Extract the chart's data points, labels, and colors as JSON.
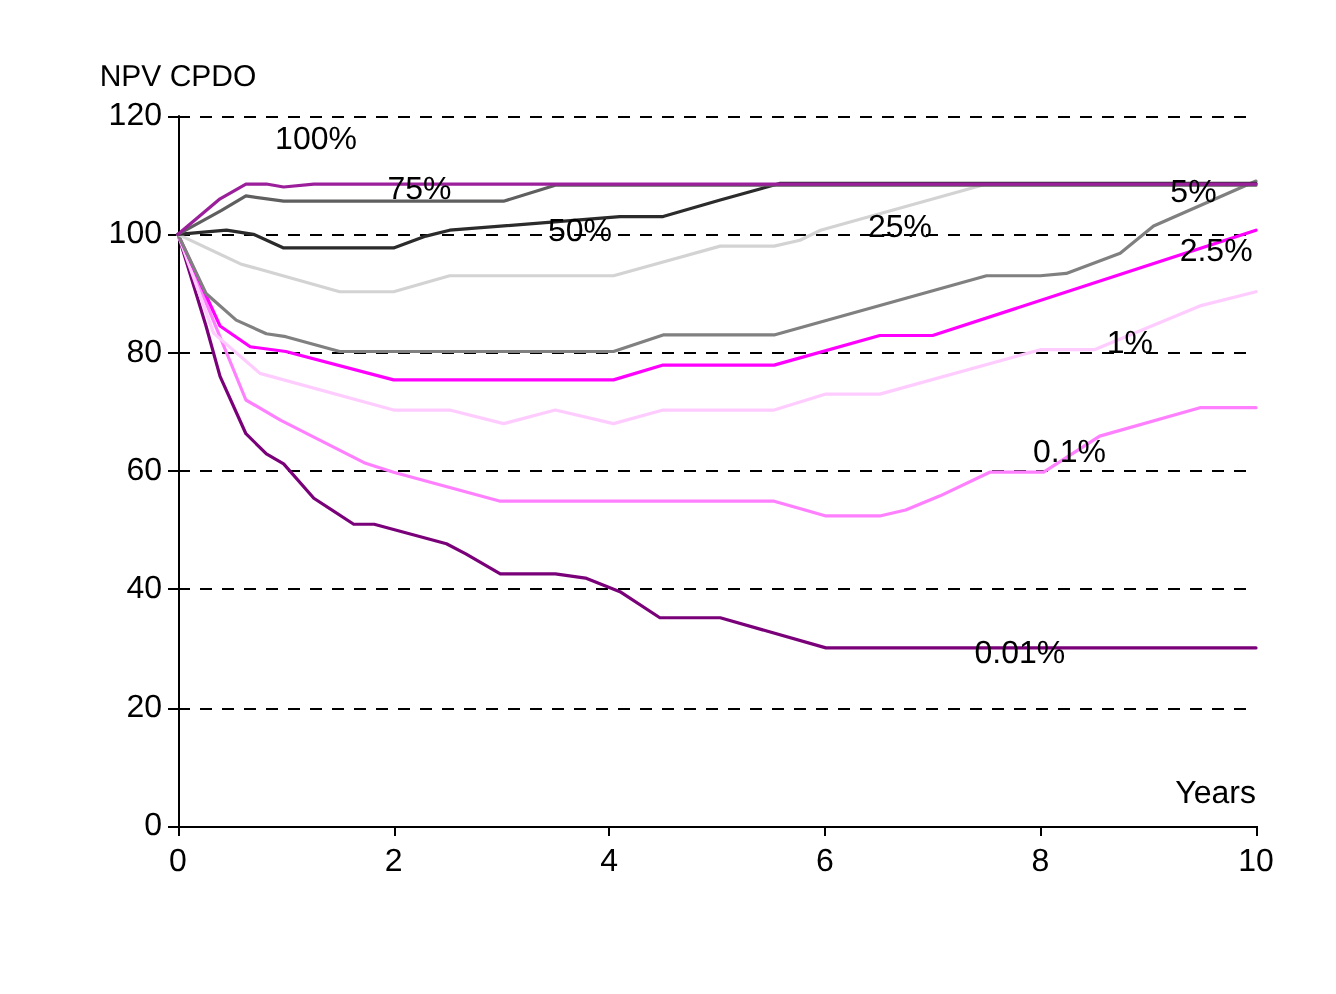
{
  "chart_data": {
    "type": "line",
    "ylabel": "NPV CPDO",
    "xlabel": "Years",
    "xlim": [
      0,
      10
    ],
    "xticks": [
      0,
      2,
      4,
      6,
      8,
      10
    ],
    "ylim": [
      0,
      120
    ],
    "yticks": [
      0,
      20,
      40,
      60,
      80,
      100,
      120
    ],
    "grid": "y",
    "marker": "none",
    "line_style": "solid",
    "series": [
      {
        "color": "#9b1f9b",
        "x": [
          0,
          0.39,
          0.63,
          0.82,
          0.98,
          1.26,
          10
        ],
        "values": [
          100,
          106,
          108.5,
          108.5,
          108,
          108.5,
          108.5
        ]
      },
      {
        "color": "#5f5f5f",
        "x": [
          0,
          0.4,
          0.63,
          0.98,
          3.02,
          3.5,
          10
        ],
        "values": [
          100,
          104,
          106.5,
          105.6,
          105.6,
          108.3,
          108.3
        ]
      },
      {
        "color": "#2b2b2b",
        "x": [
          0,
          0.45,
          0.7,
          0.98,
          2.0,
          2.3,
          2.52,
          4.1,
          4.5,
          5.03,
          5.58,
          10
        ],
        "values": [
          100,
          100.7,
          100,
          97.7,
          97.7,
          99.7,
          100.7,
          103,
          103,
          105.8,
          108.6,
          108.6
        ]
      },
      {
        "color": "#d3d3d3",
        "x": [
          0,
          0.58,
          1.5,
          2.0,
          2.52,
          4.04,
          5.03,
          5.53,
          5.77,
          5.96,
          7.5,
          10
        ],
        "values": [
          100,
          95,
          90.3,
          90.3,
          93,
          93,
          98,
          98,
          99,
          100.7,
          108.5,
          108.5
        ]
      },
      {
        "color": "#808080",
        "x": [
          0,
          0.26,
          0.54,
          0.82,
          1.0,
          1.5,
          4.04,
          4.5,
          5.53,
          7.5,
          8.0,
          8.24,
          8.74,
          9.05,
          10
        ],
        "values": [
          100,
          90,
          85.5,
          83.2,
          82.7,
          80.2,
          80.2,
          83,
          83,
          93,
          93,
          93.4,
          96.8,
          101.4,
          109
        ]
      },
      {
        "color": "#ff00ff",
        "x": [
          0,
          0.39,
          0.67,
          1.0,
          2.0,
          4.04,
          4.5,
          5.53,
          6.51,
          7.0,
          10
        ],
        "values": [
          100,
          84.5,
          81,
          80.2,
          75.4,
          75.4,
          77.9,
          77.9,
          82.9,
          82.9,
          100.7
        ]
      },
      {
        "color": "#ffccff",
        "x": [
          0,
          0.33,
          0.76,
          2.0,
          2.52,
          3.02,
          3.5,
          4.04,
          4.5,
          5.53,
          6.01,
          6.51,
          8.0,
          8.5,
          9.48,
          10
        ],
        "values": [
          100,
          83.3,
          76.5,
          70.3,
          70.3,
          68,
          70.3,
          68,
          70.3,
          70.3,
          73,
          73,
          80.5,
          80.5,
          87.9,
          90.3
        ]
      },
      {
        "color": "#ff80ff",
        "x": [
          0,
          0.63,
          0.95,
          1.74,
          2.0,
          2.99,
          5.53,
          6.01,
          6.51,
          6.75,
          7.07,
          7.53,
          8.03,
          8.55,
          9.48,
          10
        ],
        "values": [
          100,
          72,
          68.6,
          61.3,
          59.8,
          54.9,
          54.9,
          52.4,
          52.4,
          53.4,
          55.8,
          59.8,
          59.8,
          65.9,
          70.7,
          70.7
        ]
      },
      {
        "color": "#7a007a",
        "x": [
          0,
          0.26,
          0.39,
          0.63,
          0.82,
          0.98,
          1.26,
          1.63,
          1.82,
          2.49,
          2.67,
          2.99,
          3.5,
          3.78,
          4.1,
          4.47,
          4.97,
          5.03,
          6.01,
          10
        ],
        "values": [
          100,
          84.5,
          76,
          66.3,
          62.9,
          61.2,
          55.4,
          51,
          51,
          47.7,
          46,
          42.6,
          42.6,
          41.9,
          39.6,
          35.2,
          35.2,
          35.2,
          30.1,
          30.1
        ]
      }
    ],
    "annotations": [
      "100%",
      {
        "text": "75%",
        "x": 2.24,
        "y": 107.5
      },
      "50%",
      "25%",
      {
        "text": "5%",
        "x": 9.42,
        "y": 107
      },
      {
        "text": "2.5%",
        "x": 9.63,
        "y": 97
      },
      {
        "text": "1%",
        "x": 8.83,
        "y": 81.5
      },
      {
        "text": "0.1%",
        "x": 8.27,
        "y": 63
      },
      {
        "text": "0.01%",
        "x": 7.81,
        "y": 29
      }
    ]
  }
}
